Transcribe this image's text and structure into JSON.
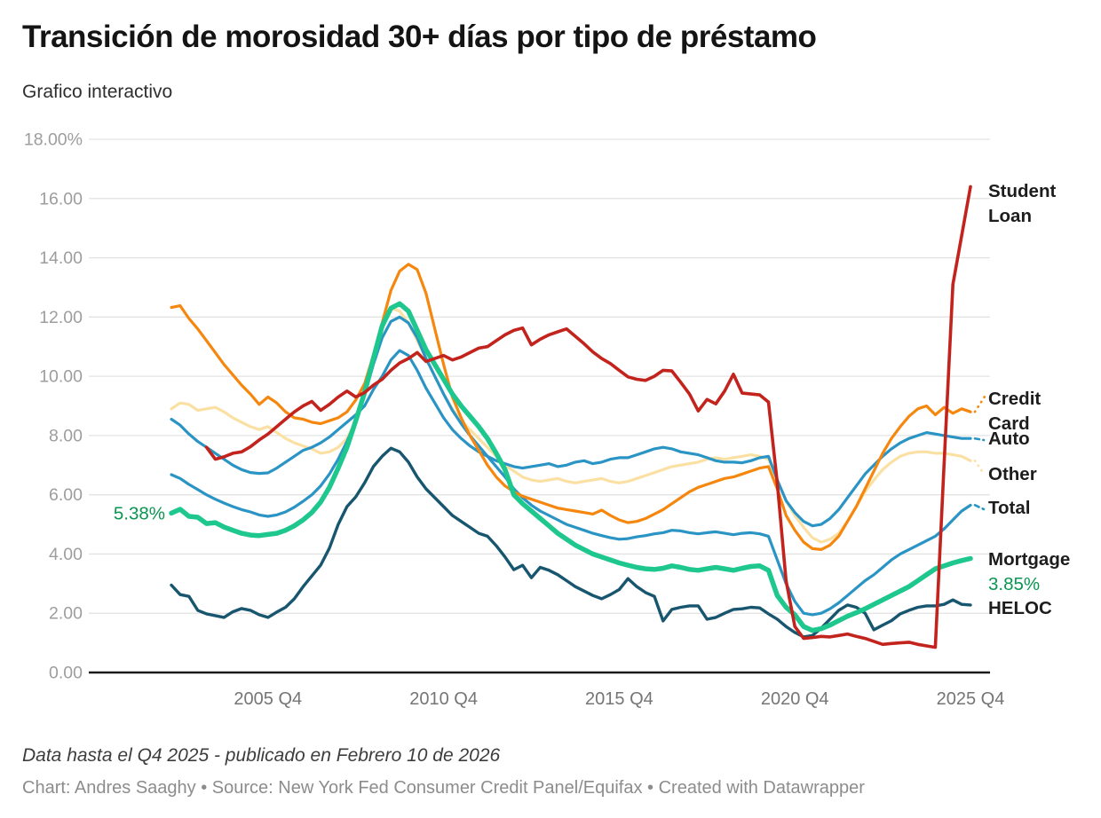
{
  "header": {
    "title": "Transición de morosidad 30+ días por tipo de préstamo",
    "subtitle": "Grafico interactivo"
  },
  "footer": {
    "note": "Data hasta el Q4 2025 - publicado en Febrero 10 de 2026",
    "byline": "Chart: Andres Saaghy • Source: New York Fed Consumer Credit Panel/Equifax • Created with Datawrapper"
  },
  "chart_data": {
    "type": "line",
    "title": "Transición de morosidad 30+ días por tipo de préstamo",
    "x_unit": "quarter",
    "x_start": "2003 Q1",
    "x_end": "2025 Q4",
    "points_per_series": 92,
    "ylim": [
      0,
      18
    ],
    "grid": "horizontal",
    "legend_position": "right-edge-labels",
    "colors": {
      "grid": "#e3e3e3",
      "axis": "#1a1a1a",
      "y_tick_text": "#9d9d9d",
      "x_tick_text": "#757575",
      "label_text": "#1d1d1d",
      "annotation_green": "#0b9551"
    },
    "y_ticks": [
      {
        "v": 18,
        "label": "18.00%"
      },
      {
        "v": 16,
        "label": "16.00"
      },
      {
        "v": 14,
        "label": "14.00"
      },
      {
        "v": 12,
        "label": "12.00"
      },
      {
        "v": 10,
        "label": "10.00"
      },
      {
        "v": 8,
        "label": "8.00"
      },
      {
        "v": 6,
        "label": "6.00"
      },
      {
        "v": 4,
        "label": "4.00"
      },
      {
        "v": 2,
        "label": "2.00"
      },
      {
        "v": 0,
        "label": "0.00"
      }
    ],
    "x_ticks": [
      {
        "index": 11,
        "label": "2005 Q4"
      },
      {
        "index": 31,
        "label": "2010 Q4"
      },
      {
        "index": 51,
        "label": "2015 Q4"
      },
      {
        "index": 71,
        "label": "2020 Q4"
      },
      {
        "index": 91,
        "label": "2025 Q4"
      }
    ],
    "series": [
      {
        "id": "other",
        "label_lines": [
          "Other"
        ],
        "color": "#fbe0a3",
        "width": 3.2,
        "connector": "dotted",
        "values": [
          8.9,
          9.1,
          9.05,
          8.85,
          8.9,
          8.95,
          8.8,
          8.6,
          8.45,
          8.3,
          8.2,
          8.3,
          8.1,
          7.9,
          7.75,
          7.65,
          7.55,
          7.4,
          7.45,
          7.6,
          7.9,
          8.5,
          9.4,
          10.6,
          11.6,
          12.3,
          12.2,
          11.8,
          11.2,
          10.6,
          10.0,
          9.4,
          8.9,
          8.5,
          8.2,
          7.9,
          7.6,
          7.3,
          7.0,
          6.8,
          6.6,
          6.5,
          6.45,
          6.5,
          6.55,
          6.45,
          6.4,
          6.45,
          6.5,
          6.55,
          6.45,
          6.4,
          6.45,
          6.55,
          6.65,
          6.75,
          6.85,
          6.95,
          7.0,
          7.05,
          7.1,
          7.2,
          7.25,
          7.2,
          7.25,
          7.3,
          7.35,
          7.3,
          7.2,
          6.5,
          5.8,
          5.3,
          4.9,
          4.55,
          4.4,
          4.5,
          4.7,
          5.1,
          5.6,
          6.1,
          6.5,
          6.85,
          7.1,
          7.3,
          7.4,
          7.45,
          7.45,
          7.4,
          7.4,
          7.35,
          7.3,
          7.15
        ]
      },
      {
        "id": "auto",
        "label_lines": [
          "Auto"
        ],
        "color": "#2a94c5",
        "width": 3.2,
        "connector": "dash",
        "values": [
          8.55,
          8.35,
          8.05,
          7.8,
          7.6,
          7.4,
          7.2,
          7.0,
          6.85,
          6.75,
          6.72,
          6.74,
          6.9,
          7.1,
          7.3,
          7.5,
          7.6,
          7.75,
          7.95,
          8.2,
          8.45,
          8.7,
          9.0,
          9.55,
          10.0,
          10.55,
          10.87,
          10.7,
          10.2,
          9.6,
          9.1,
          8.6,
          8.2,
          7.9,
          7.65,
          7.45,
          7.3,
          7.15,
          7.05,
          6.95,
          6.9,
          6.95,
          7.0,
          7.05,
          6.95,
          7.0,
          7.1,
          7.15,
          7.05,
          7.1,
          7.2,
          7.25,
          7.25,
          7.35,
          7.45,
          7.55,
          7.6,
          7.55,
          7.45,
          7.4,
          7.35,
          7.25,
          7.15,
          7.1,
          7.1,
          7.08,
          7.15,
          7.25,
          7.3,
          6.5,
          5.8,
          5.4,
          5.1,
          4.95,
          5.0,
          5.2,
          5.5,
          5.9,
          6.3,
          6.7,
          7.0,
          7.3,
          7.55,
          7.75,
          7.9,
          8.0,
          8.1,
          8.05,
          8.0,
          7.95,
          7.9,
          7.9
        ]
      },
      {
        "id": "total",
        "label_lines": [
          "Total"
        ],
        "color": "#2a94c5",
        "width": 3.2,
        "connector": "dash",
        "values": [
          6.68,
          6.55,
          6.35,
          6.18,
          6.0,
          5.85,
          5.72,
          5.6,
          5.5,
          5.42,
          5.32,
          5.27,
          5.32,
          5.42,
          5.58,
          5.78,
          6.0,
          6.3,
          6.7,
          7.2,
          7.8,
          8.5,
          9.35,
          10.4,
          11.3,
          11.85,
          12.0,
          11.8,
          11.3,
          10.6,
          10.0,
          9.4,
          8.85,
          8.4,
          8.0,
          7.65,
          7.3,
          6.95,
          6.6,
          6.2,
          5.9,
          5.65,
          5.45,
          5.3,
          5.15,
          5.0,
          4.9,
          4.8,
          4.7,
          4.62,
          4.55,
          4.5,
          4.52,
          4.58,
          4.62,
          4.68,
          4.72,
          4.8,
          4.78,
          4.72,
          4.68,
          4.72,
          4.75,
          4.7,
          4.65,
          4.7,
          4.72,
          4.68,
          4.6,
          3.8,
          3.0,
          2.4,
          2.0,
          1.95,
          2.0,
          2.15,
          2.35,
          2.6,
          2.85,
          3.1,
          3.3,
          3.55,
          3.8,
          4.0,
          4.15,
          4.3,
          4.45,
          4.6,
          4.85,
          5.15,
          5.45,
          5.65
        ]
      },
      {
        "id": "heloc",
        "label_lines": [
          "HELOC"
        ],
        "color": "#17566e",
        "width": 3.4,
        "connector": null,
        "values": [
          2.95,
          2.63,
          2.57,
          2.1,
          1.98,
          1.92,
          1.86,
          2.05,
          2.16,
          2.1,
          1.95,
          1.86,
          2.04,
          2.2,
          2.49,
          2.9,
          3.26,
          3.62,
          4.2,
          5.0,
          5.6,
          5.93,
          6.4,
          6.95,
          7.3,
          7.57,
          7.45,
          7.1,
          6.6,
          6.2,
          5.9,
          5.6,
          5.3,
          5.1,
          4.9,
          4.7,
          4.6,
          4.28,
          3.9,
          3.47,
          3.62,
          3.2,
          3.55,
          3.45,
          3.3,
          3.1,
          2.9,
          2.75,
          2.6,
          2.49,
          2.63,
          2.8,
          3.17,
          2.9,
          2.7,
          2.57,
          1.74,
          2.13,
          2.2,
          2.25,
          2.25,
          1.8,
          1.86,
          2.0,
          2.13,
          2.15,
          2.2,
          2.18,
          1.98,
          1.8,
          1.55,
          1.35,
          1.2,
          1.25,
          1.5,
          1.8,
          2.1,
          2.28,
          2.2,
          2.0,
          1.44,
          1.6,
          1.75,
          1.98,
          2.1,
          2.2,
          2.25,
          2.25,
          2.3,
          2.45,
          2.3,
          2.28
        ]
      },
      {
        "id": "credit_card",
        "label_lines": [
          "Credit",
          "Card"
        ],
        "color": "#f5870f",
        "width": 3.2,
        "connector": "dotted",
        "values": [
          12.32,
          12.38,
          11.95,
          11.6,
          11.2,
          10.8,
          10.4,
          10.05,
          9.7,
          9.4,
          9.05,
          9.3,
          9.1,
          8.8,
          8.6,
          8.55,
          8.45,
          8.4,
          8.5,
          8.6,
          8.8,
          9.2,
          9.75,
          10.7,
          11.8,
          12.9,
          13.55,
          13.78,
          13.6,
          12.8,
          11.6,
          10.4,
          9.3,
          8.6,
          8.0,
          7.5,
          7.0,
          6.6,
          6.3,
          6.1,
          5.95,
          5.85,
          5.75,
          5.65,
          5.55,
          5.5,
          5.45,
          5.4,
          5.35,
          5.48,
          5.3,
          5.15,
          5.06,
          5.1,
          5.2,
          5.35,
          5.5,
          5.7,
          5.9,
          6.1,
          6.25,
          6.35,
          6.45,
          6.55,
          6.6,
          6.7,
          6.8,
          6.9,
          6.95,
          6.2,
          5.3,
          4.8,
          4.4,
          4.18,
          4.15,
          4.3,
          4.6,
          5.1,
          5.6,
          6.2,
          6.8,
          7.4,
          7.9,
          8.3,
          8.65,
          8.9,
          9.0,
          8.7,
          8.95,
          8.75,
          8.9,
          8.8
        ]
      },
      {
        "id": "mortgage",
        "label_lines": [
          "Mortgage"
        ],
        "color": "#1dc78d",
        "width": 5.5,
        "connector": null,
        "start_annotation": "5.38%",
        "end_annotation": "3.85%",
        "annotation_color": "#0b9551",
        "values": [
          5.38,
          5.51,
          5.27,
          5.24,
          5.03,
          5.06,
          4.91,
          4.8,
          4.7,
          4.64,
          4.62,
          4.66,
          4.7,
          4.8,
          4.95,
          5.15,
          5.4,
          5.75,
          6.25,
          6.9,
          7.6,
          8.5,
          9.45,
          10.6,
          11.7,
          12.3,
          12.45,
          12.2,
          11.55,
          10.9,
          10.4,
          9.9,
          9.4,
          9.0,
          8.65,
          8.3,
          7.9,
          7.4,
          6.85,
          6.0,
          5.7,
          5.45,
          5.2,
          4.95,
          4.7,
          4.5,
          4.3,
          4.15,
          4.0,
          3.9,
          3.8,
          3.7,
          3.62,
          3.55,
          3.5,
          3.48,
          3.52,
          3.6,
          3.55,
          3.48,
          3.45,
          3.5,
          3.55,
          3.5,
          3.45,
          3.52,
          3.58,
          3.6,
          3.45,
          2.6,
          2.2,
          1.95,
          1.55,
          1.42,
          1.48,
          1.6,
          1.75,
          1.9,
          2.02,
          2.15,
          2.3,
          2.45,
          2.6,
          2.75,
          2.9,
          3.1,
          3.3,
          3.5,
          3.6,
          3.7,
          3.78,
          3.85
        ]
      },
      {
        "id": "student_loan",
        "label_lines": [
          "Student",
          "Loan"
        ],
        "color": "#c3231d",
        "width": 3.6,
        "connector": null,
        "values": [
          null,
          null,
          null,
          null,
          7.6,
          7.2,
          7.28,
          7.4,
          7.45,
          7.62,
          7.85,
          8.05,
          8.3,
          8.55,
          8.8,
          9.0,
          9.15,
          8.85,
          9.05,
          9.3,
          9.5,
          9.3,
          9.45,
          9.7,
          9.9,
          10.2,
          10.45,
          10.6,
          10.8,
          10.5,
          10.6,
          10.7,
          10.55,
          10.65,
          10.8,
          10.95,
          11.0,
          11.2,
          11.4,
          11.55,
          11.63,
          11.06,
          11.25,
          11.4,
          11.5,
          11.6,
          11.35,
          11.1,
          10.82,
          10.6,
          10.43,
          10.2,
          9.98,
          9.9,
          9.86,
          10.0,
          10.2,
          10.18,
          9.8,
          9.4,
          8.83,
          9.22,
          9.07,
          9.5,
          10.07,
          9.43,
          9.4,
          9.37,
          9.13,
          6.4,
          3.1,
          1.55,
          1.15,
          1.18,
          1.22,
          1.2,
          1.25,
          1.3,
          1.22,
          1.15,
          1.05,
          0.95,
          0.98,
          1.0,
          1.02,
          0.95,
          0.9,
          0.85,
          7.05,
          13.1,
          14.75,
          16.4
        ]
      }
    ]
  }
}
